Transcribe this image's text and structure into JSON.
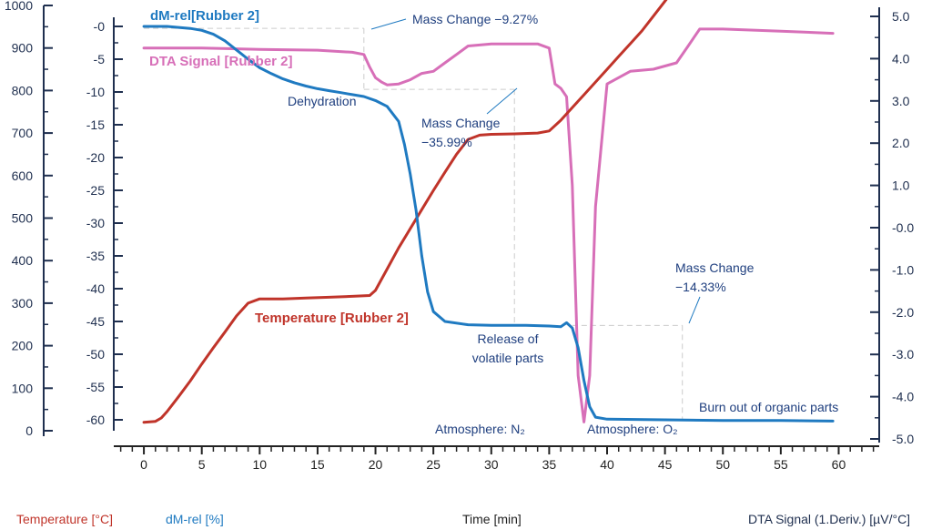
{
  "colors": {
    "temperature": "#c0342a",
    "dm_rel": "#1f7ac1",
    "dta": "#d76fb8",
    "axis": "#1f2f4f",
    "annotation_text": "#1f3f7f",
    "guide": "#cccccc"
  },
  "axis_titles": {
    "temperature": "Temperature [°C]",
    "dm_rel": "dM-rel [%]",
    "time": "Time [min]",
    "dta": "DTA Signal (1.Deriv.) [µV/°C]"
  },
  "chart_data": {
    "type": "line",
    "x_label": "Time [min]",
    "x_ticks": [
      "0",
      "5",
      "10",
      "15",
      "20",
      "25",
      "30",
      "35",
      "40",
      "45",
      "50",
      "55",
      "60"
    ],
    "x_range": [
      -2.6,
      63.5
    ],
    "axes": {
      "temperature": {
        "label": "Temperature [°C]",
        "range": [
          0,
          1000
        ],
        "ticks": [
          "0",
          "100",
          "200",
          "300",
          "400",
          "500",
          "600",
          "700",
          "800",
          "900",
          "1000"
        ]
      },
      "dm_rel": {
        "label": "dM-rel [%]",
        "range": [
          -60,
          0
        ],
        "ticks": [
          "-0",
          "-5",
          "-10",
          "-15",
          "-20",
          "-25",
          "-30",
          "-35",
          "-40",
          "-45",
          "-50",
          "-55",
          "-60"
        ]
      },
      "dta": {
        "label": "DTA Signal (1.Deriv.) [µV/°C]",
        "range": [
          -5,
          5
        ],
        "ticks": [
          "5.0",
          "4.0",
          "3.0",
          "2.0",
          "1.0",
          "-0.0",
          "-1.0",
          "-2.0",
          "-3.0",
          "-4.0",
          "-5.0"
        ]
      }
    },
    "series": [
      {
        "name": "Temperature [Rubber 2]",
        "axis": "temperature",
        "x": [
          0,
          1,
          1.5,
          2,
          3,
          4,
          5,
          6,
          7,
          8,
          9,
          10,
          11,
          12,
          14,
          16,
          18,
          19.5,
          20,
          21,
          22,
          23,
          24,
          25,
          26,
          27,
          28,
          29,
          30,
          32,
          34,
          35,
          36,
          37,
          38,
          39,
          40,
          41,
          42,
          43,
          44,
          45,
          46,
          47,
          48,
          50,
          52,
          55,
          58,
          59.5
        ],
        "y": [
          20,
          22,
          30,
          45,
          80,
          117,
          157,
          195,
          232,
          270,
          300,
          310,
          310,
          310,
          312,
          314,
          316,
          318,
          330,
          380,
          430,
          475,
          520,
          565,
          608,
          650,
          685,
          695,
          697,
          698,
          700,
          705,
          730,
          760,
          790,
          820,
          850,
          880,
          910,
          940,
          975,
          1010,
          1045,
          1080,
          1095,
          1095,
          1095,
          1094,
          1092,
          1092
        ]
      },
      {
        "name": "dM-rel[Rubber 2]",
        "axis": "dm_rel",
        "x": [
          0,
          2,
          4,
          5,
          6,
          7,
          8,
          9,
          10,
          11,
          12,
          13,
          14,
          15,
          16,
          17,
          18,
          19,
          20,
          21,
          22,
          22.5,
          23,
          23.5,
          24,
          24.5,
          25,
          26,
          28,
          30,
          33,
          35,
          36,
          36.5,
          37,
          37.5,
          38,
          38.5,
          39,
          40,
          45,
          50,
          55,
          59.5
        ],
        "y": [
          0,
          0,
          -0.3,
          -0.6,
          -1.2,
          -2.2,
          -3.6,
          -5,
          -6.3,
          -7.2,
          -8,
          -8.6,
          -9.1,
          -9.5,
          -9.8,
          -10.1,
          -10.4,
          -10.7,
          -11.3,
          -12.2,
          -14.5,
          -18,
          -22.5,
          -28,
          -35,
          -40.5,
          -43.5,
          -45,
          -45.5,
          -45.6,
          -45.6,
          -45.7,
          -45.8,
          -45.2,
          -46,
          -49,
          -54,
          -58,
          -59.6,
          -59.9,
          -60,
          -60.1,
          -60.1,
          -60.2
        ]
      },
      {
        "name": "DTA Signal [Rubber 2]",
        "axis": "dta",
        "x": [
          0,
          5,
          10,
          15,
          18,
          19,
          19.5,
          20,
          20.5,
          21,
          22,
          23,
          24,
          25,
          26,
          27,
          28,
          30,
          32,
          34,
          35,
          35.5,
          36,
          36.5,
          37,
          37.5,
          38,
          38.5,
          39,
          40,
          42,
          44,
          46,
          47,
          47.5,
          48,
          50,
          55,
          59.5
        ],
        "y": [
          4.25,
          4.25,
          4.22,
          4.2,
          4.15,
          4.1,
          3.8,
          3.55,
          3.45,
          3.38,
          3.4,
          3.5,
          3.65,
          3.7,
          3.9,
          4.1,
          4.3,
          4.35,
          4.35,
          4.35,
          4.25,
          3.4,
          3.3,
          3.1,
          1.0,
          -3.5,
          -4.6,
          -3.5,
          0.5,
          3.4,
          3.7,
          3.75,
          3.9,
          4.3,
          4.5,
          4.7,
          4.7,
          4.65,
          4.6
        ]
      }
    ],
    "annotations": [
      {
        "text": "Mass Change −9.27%"
      },
      {
        "text_lines": [
          "Mass Change",
          "−35.99%"
        ]
      },
      {
        "text_lines": [
          "Mass Change",
          "−14.33%"
        ]
      },
      {
        "text": "Dehydration"
      },
      {
        "text_lines": [
          "Release of",
          "volatile parts"
        ]
      },
      {
        "text": "Burn out of organic parts"
      },
      {
        "text": "Atmosphere: N₂"
      },
      {
        "text": "Atmosphere: O₂"
      }
    ]
  }
}
